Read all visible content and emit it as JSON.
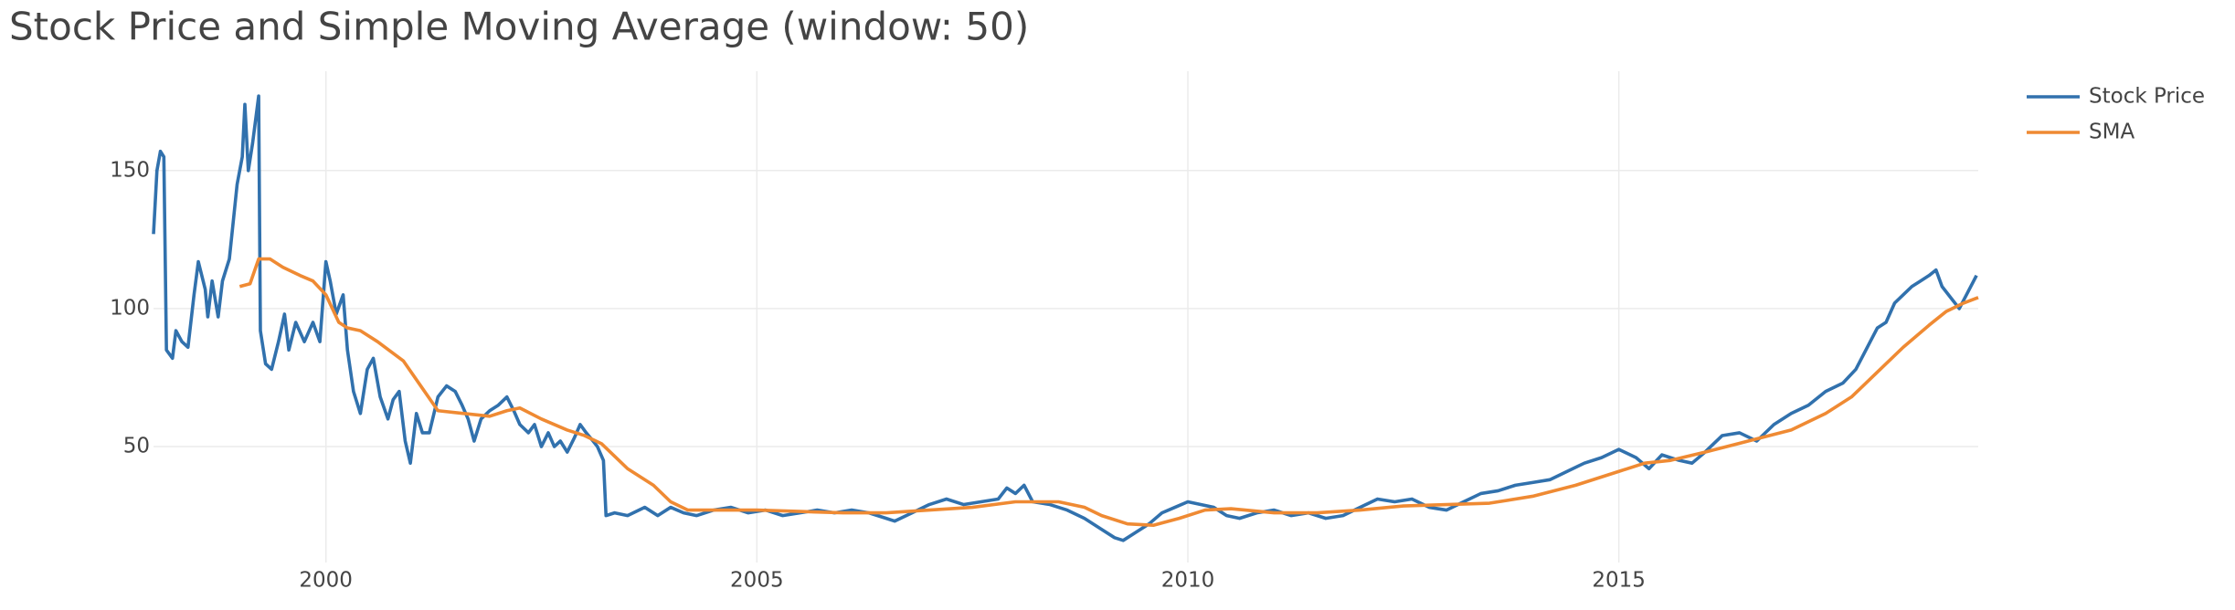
{
  "chart_data": {
    "type": "line",
    "title": "Stock Price and Simple Moving Average (window: 50)",
    "xlim": [
      1998.0,
      2019.17
    ],
    "xticks": [
      2000,
      2005,
      2010,
      2015
    ],
    "ylim": [
      8,
      186
    ],
    "yticks": [
      50,
      100,
      150
    ],
    "grid": true,
    "legend": "top-right",
    "series": [
      {
        "name": "Stock Price",
        "color": "#3171ad",
        "x": [
          1998.0,
          1998.04,
          1998.08,
          1998.12,
          1998.15,
          1998.22,
          1998.26,
          1998.33,
          1998.4,
          1998.47,
          1998.52,
          1998.6,
          1998.63,
          1998.68,
          1998.75,
          1998.8,
          1998.88,
          1998.92,
          1998.97,
          1999.03,
          1999.06,
          1999.1,
          1999.15,
          1999.22,
          1999.24,
          1999.3,
          1999.37,
          1999.45,
          1999.52,
          1999.57,
          1999.65,
          1999.75,
          1999.85,
          1999.93,
          2000.0,
          2000.05,
          2000.12,
          2000.2,
          2000.25,
          2000.32,
          2000.4,
          2000.48,
          2000.55,
          2000.63,
          2000.72,
          2000.78,
          2000.85,
          2000.92,
          2000.98,
          2001.05,
          2001.12,
          2001.2,
          2001.3,
          2001.4,
          2001.5,
          2001.58,
          2001.65,
          2001.72,
          2001.8,
          2001.9,
          2002.0,
          2002.1,
          2002.18,
          2002.25,
          2002.35,
          2002.42,
          2002.5,
          2002.58,
          2002.65,
          2002.72,
          2002.8,
          2002.88,
          2002.95,
          2003.02,
          2003.1,
          2003.15,
          2003.22,
          2003.25,
          2003.35,
          2003.5,
          2003.7,
          2003.85,
          2004.0,
          2004.15,
          2004.3,
          2004.5,
          2004.7,
          2004.9,
          2005.1,
          2005.3,
          2005.5,
          2005.7,
          2005.9,
          2006.1,
          2006.3,
          2006.5,
          2006.6,
          2006.8,
          2007.0,
          2007.2,
          2007.4,
          2007.6,
          2007.8,
          2007.9,
          2008.0,
          2008.1,
          2008.2,
          2008.4,
          2008.6,
          2008.8,
          2009.0,
          2009.15,
          2009.25,
          2009.4,
          2009.55,
          2009.7,
          2009.85,
          2010.0,
          2010.15,
          2010.3,
          2010.45,
          2010.6,
          2010.8,
          2011.0,
          2011.2,
          2011.4,
          2011.6,
          2011.8,
          2012.0,
          2012.2,
          2012.4,
          2012.6,
          2012.8,
          2013.0,
          2013.2,
          2013.4,
          2013.6,
          2013.8,
          2014.0,
          2014.2,
          2014.4,
          2014.6,
          2014.8,
          2015.0,
          2015.2,
          2015.35,
          2015.5,
          2015.7,
          2015.85,
          2016.0,
          2016.2,
          2016.4,
          2016.6,
          2016.8,
          2017.0,
          2017.2,
          2017.4,
          2017.6,
          2017.75,
          2017.9,
          2018.0,
          2018.1,
          2018.2,
          2018.3,
          2018.4,
          2018.5,
          2018.6,
          2018.68,
          2018.75,
          2018.85,
          2018.95,
          2019.05,
          2019.15
        ],
        "values": [
          127,
          150,
          157,
          155,
          85,
          82,
          92,
          88,
          86,
          105,
          117,
          107,
          97,
          110,
          97,
          110,
          118,
          130,
          145,
          155,
          174,
          150,
          160,
          177,
          92,
          80,
          78,
          88,
          98,
          85,
          95,
          88,
          95,
          88,
          117,
          110,
          98,
          105,
          85,
          70,
          62,
          78,
          82,
          68,
          60,
          67,
          70,
          52,
          44,
          62,
          55,
          55,
          68,
          72,
          70,
          65,
          60,
          52,
          60,
          63,
          65,
          68,
          63,
          58,
          55,
          58,
          50,
          55,
          50,
          52,
          48,
          53,
          58,
          55,
          52,
          50,
          45,
          25,
          26,
          25,
          28,
          25,
          28,
          26,
          25,
          27,
          28,
          26,
          27,
          25,
          26,
          27,
          26,
          27,
          26,
          24,
          23,
          26,
          29,
          31,
          29,
          30,
          31,
          35,
          33,
          36,
          30,
          29,
          27,
          24,
          20,
          17,
          16,
          19,
          22,
          26,
          28,
          30,
          29,
          28,
          25,
          24,
          26,
          27,
          25,
          26,
          24,
          25,
          28,
          31,
          30,
          31,
          28,
          27,
          30,
          33,
          34,
          36,
          37,
          38,
          41,
          44,
          46,
          49,
          46,
          42,
          47,
          45,
          44,
          48,
          54,
          55,
          52,
          58,
          62,
          65,
          70,
          73,
          78,
          87,
          93,
          95,
          102,
          105,
          108,
          110,
          112,
          114,
          108,
          104,
          100,
          106,
          112
        ]
      },
      {
        "name": "SMA",
        "color": "#ef8a33",
        "x": [
          1999.0,
          1999.12,
          1999.22,
          1999.35,
          1999.5,
          1999.7,
          1999.85,
          2000.0,
          2000.15,
          2000.25,
          2000.4,
          2000.6,
          2000.9,
          2001.1,
          2001.3,
          2001.6,
          2001.9,
          2002.1,
          2002.25,
          2002.5,
          2002.8,
          2003.0,
          2003.2,
          2003.5,
          2003.8,
          2004.0,
          2004.2,
          2004.5,
          2005.0,
          2005.5,
          2006.0,
          2006.5,
          2007.0,
          2007.5,
          2008.0,
          2008.5,
          2008.8,
          2009.0,
          2009.3,
          2009.6,
          2009.9,
          2010.2,
          2010.5,
          2011.0,
          2011.5,
          2012.0,
          2012.5,
          2013.0,
          2013.5,
          2014.0,
          2014.5,
          2015.0,
          2015.3,
          2015.6,
          2016.0,
          2016.5,
          2017.0,
          2017.4,
          2017.7,
          2018.0,
          2018.3,
          2018.6,
          2018.8,
          2019.0,
          2019.17
        ],
        "values": [
          108,
          109,
          118,
          118,
          115,
          112,
          110,
          105,
          95,
          93,
          92,
          88,
          81,
          72,
          63,
          62,
          61,
          63,
          64,
          60,
          56,
          54,
          51,
          42,
          36,
          30,
          27,
          27,
          27,
          26.5,
          26,
          26,
          27,
          28,
          30,
          30,
          28,
          25,
          22,
          21.5,
          24,
          27,
          27.5,
          26,
          26,
          27,
          28.5,
          29,
          29.5,
          32,
          36,
          41,
          44,
          45,
          48,
          52,
          56,
          62,
          68,
          77,
          86,
          94,
          99,
          102,
          104
        ]
      }
    ]
  }
}
